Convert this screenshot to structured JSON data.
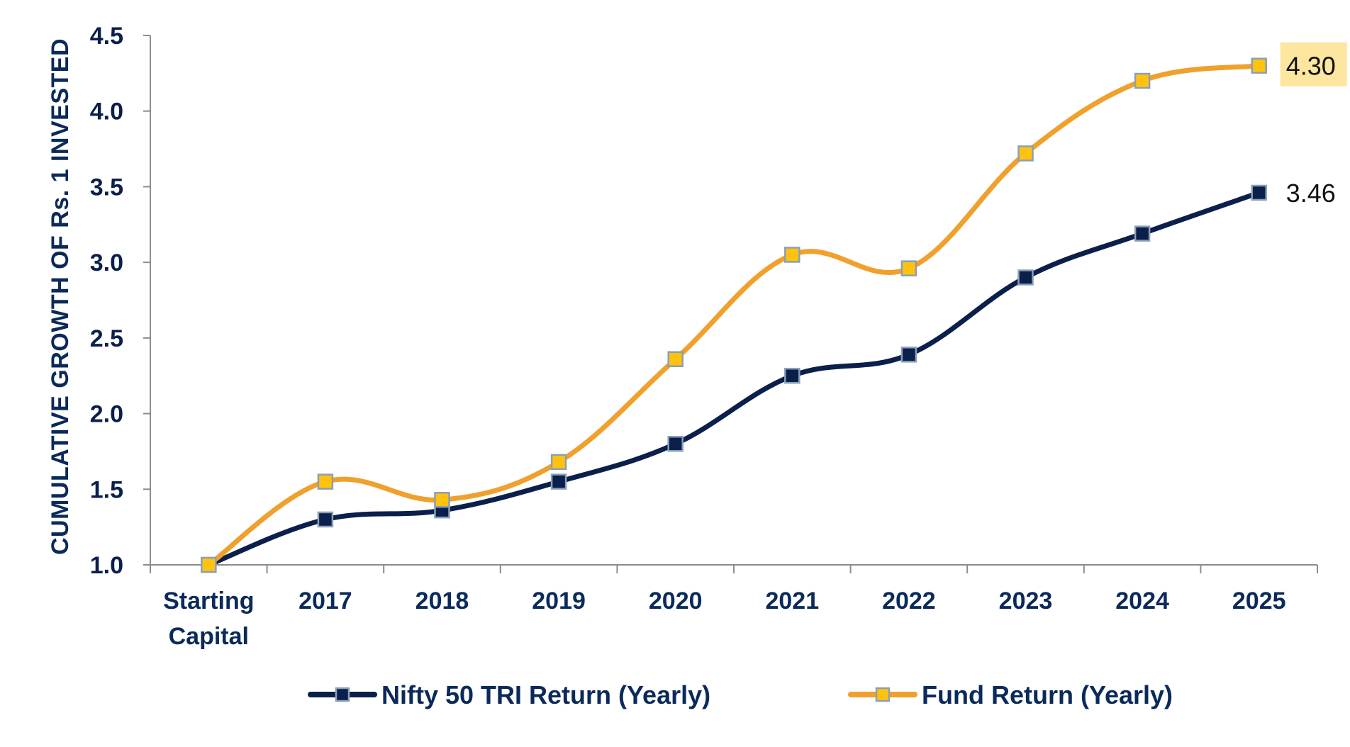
{
  "chart_data": {
    "type": "line",
    "categories": [
      [
        "Starting",
        "Capital"
      ],
      [
        "2017"
      ],
      [
        "2018"
      ],
      [
        "2019"
      ],
      [
        "2020"
      ],
      [
        "2021"
      ],
      [
        "2022"
      ],
      [
        "2023"
      ],
      [
        "2024"
      ],
      [
        "2025"
      ]
    ],
    "ylabel": "CUMULATIVE GROWTH OF Rs. 1 INVESTED",
    "ylim": [
      1.0,
      4.5
    ],
    "yticks": [
      "1.0",
      "1.5",
      "2.0",
      "2.5",
      "3.0",
      "3.5",
      "4.0",
      "4.5"
    ],
    "grid": false,
    "legend_position": "bottom",
    "series": [
      {
        "name": "Nifty 50 TRI Return (Yearly)",
        "color": "#0b1f4b",
        "marker_color": "#0b1f4b",
        "values": [
          1.0,
          1.3,
          1.36,
          1.55,
          1.8,
          2.25,
          2.39,
          2.9,
          3.19,
          3.46
        ],
        "end_label": "3.46"
      },
      {
        "name": "Fund Return (Yearly)",
        "color": "#f0a02c",
        "marker_color": "#ffc20e",
        "values": [
          1.0,
          1.55,
          1.43,
          1.68,
          2.36,
          3.05,
          2.96,
          3.72,
          4.2,
          4.3
        ],
        "end_label": "4.30",
        "end_label_highlight": "#fce6a0"
      }
    ]
  }
}
